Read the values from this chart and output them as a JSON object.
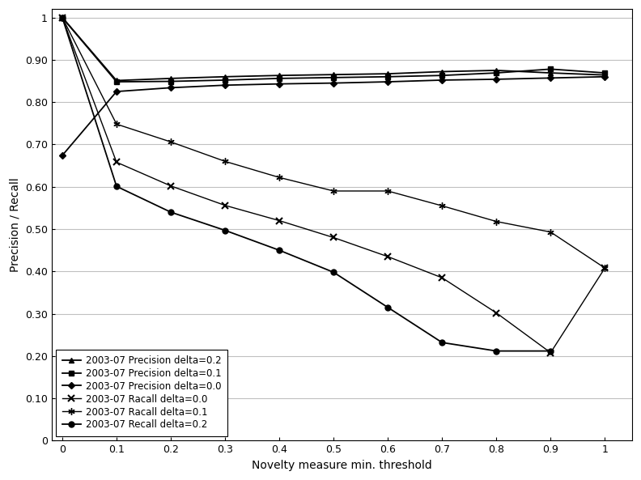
{
  "x": [
    0,
    0.1,
    0.2,
    0.3,
    0.4,
    0.5,
    0.6,
    0.7,
    0.8,
    0.9,
    1.0
  ],
  "precision_d02": [
    1.0,
    0.851,
    0.856,
    0.86,
    0.863,
    0.865,
    0.867,
    0.872,
    0.875,
    0.869,
    0.864
  ],
  "precision_d01": [
    1.0,
    0.848,
    0.849,
    0.852,
    0.856,
    0.858,
    0.86,
    0.863,
    0.869,
    0.878,
    0.869
  ],
  "precision_d00": [
    0.674,
    0.825,
    0.834,
    0.84,
    0.843,
    0.845,
    0.848,
    0.852,
    0.854,
    0.857,
    0.86
  ],
  "recall_d01": [
    1.0,
    0.748,
    0.706,
    0.66,
    0.622,
    0.59,
    0.59,
    0.555,
    0.518,
    0.493,
    0.408
  ],
  "recall_d00": [
    1.0,
    0.658,
    0.602,
    0.556,
    0.52,
    0.48,
    0.435,
    0.385,
    0.302,
    0.208,
    0.408
  ],
  "recall_d02_x": [
    0,
    0.1,
    0.2,
    0.3,
    0.4,
    0.5,
    0.6,
    0.7,
    0.8,
    0.9
  ],
  "recall_d02_y": [
    1.0,
    0.601,
    0.54,
    0.497,
    0.45,
    0.398,
    0.315,
    0.232,
    0.212,
    0.212
  ],
  "xlabel": "Novelty measure min. threshold",
  "ylabel": "Precision / Recall",
  "legend": [
    "2003-07 Precision delta=0.2",
    "2003-07 Precision delta=0.1",
    "2003-07 Precision delta=0.0",
    "2003-07 Racall delta=0.0",
    "2003-07 Racall delta=0.1",
    "2003-07 Recall delta=0.2"
  ],
  "ylim": [
    0,
    1.0
  ],
  "xlim": [
    -0.01,
    1.05
  ]
}
